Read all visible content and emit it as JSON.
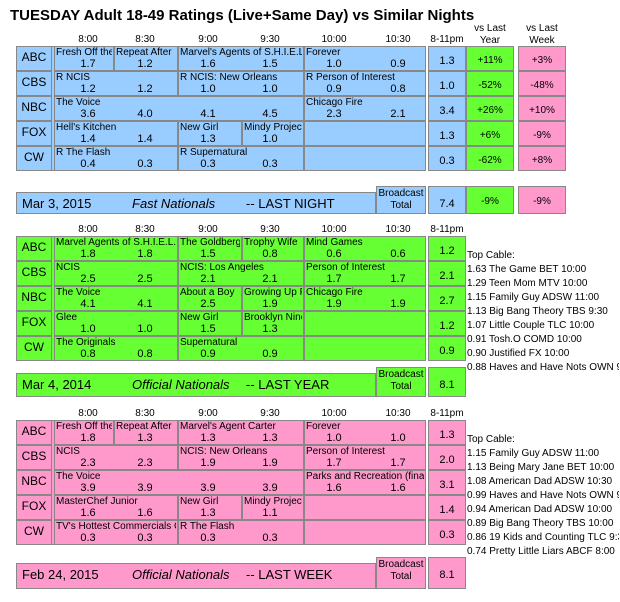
{
  "colors": {
    "blue": "#99ccff",
    "green": "#66ff33",
    "pink": "#ff99cc",
    "vs_green": "#66ff33",
    "vs_pink": "#ff99cc"
  },
  "title": {
    "day": "TUESDAY",
    "rest": " Adult 18-49 Ratings (Live+Same Day) vs Similar Nights"
  },
  "vs_headers": {
    "last_year": "vs Last\nYear",
    "last_week": "vs Last\nWeek"
  },
  "time_slots": [
    "8:00",
    "8:30",
    "9:00",
    "9:30",
    "10:00",
    "10:30",
    "8-11pm"
  ],
  "chart_data": [
    {
      "type": "table",
      "name": "Mar 3, 2015 Fast Nationals -- LAST NIGHT",
      "footer": {
        "date": "Mar 3, 2015",
        "label": "Fast Nationals",
        "suffix": "-- LAST NIGHT",
        "broadcast": "Broadcast\nTotal",
        "total": "7.4",
        "vs_year": "-9%",
        "vs_week": "-9%"
      },
      "rows": [
        {
          "network": "ABC",
          "shows": [
            "Fresh Off the",
            "Repeat After",
            "Marvel's Agents of S.H.I.E.L",
            "Forever"
          ],
          "ratings": [
            "1.7",
            "1.2",
            "1.6",
            "1.5",
            "1.0",
            "0.9"
          ],
          "total": "1.3",
          "vs_year": "+11%",
          "vs_week": "+3%"
        },
        {
          "network": "CBS",
          "shows": [
            "R NCIS",
            "R NCIS: New Orleans",
            "R Person of Interest"
          ],
          "ratings": [
            "1.2",
            "1.2",
            "1.0",
            "1.0",
            "0.9",
            "0.8"
          ],
          "total": "1.0",
          "vs_year": "-52%",
          "vs_week": "-48%"
        },
        {
          "network": "NBC",
          "shows": [
            "The Voice",
            "Chicago Fire"
          ],
          "ratings": [
            "3.6",
            "4.0",
            "4.1",
            "4.5",
            "2.3",
            "2.1"
          ],
          "total": "3.4",
          "vs_year": "+26%",
          "vs_week": "+10%"
        },
        {
          "network": "FOX",
          "shows": [
            "Hell's Kitchen",
            "New Girl",
            "Mindy Project"
          ],
          "ratings": [
            "1.4",
            "1.4",
            "1.3",
            "1.0"
          ],
          "total": "1.3",
          "vs_year": "+6%",
          "vs_week": "-9%"
        },
        {
          "network": "CW",
          "shows": [
            "R The Flash",
            "R Supernatural"
          ],
          "ratings": [
            "0.4",
            "0.3",
            "0.3",
            "0.3"
          ],
          "total": "0.3",
          "vs_year": "-62%",
          "vs_week": "+8%"
        }
      ]
    },
    {
      "type": "table",
      "name": "Mar 4, 2014 Official Nationals -- LAST YEAR",
      "footer": {
        "date": "Mar 4, 2014",
        "label": "Official Nationals",
        "suffix": "-- LAST YEAR",
        "broadcast": "Broadcast\nTotal",
        "total": "8.1"
      },
      "rows": [
        {
          "network": "ABC",
          "shows": [
            "Marvel Agents of S.H.I.E.L.D",
            "The Goldberg",
            "Trophy Wife",
            "Mind Games"
          ],
          "ratings": [
            "1.8",
            "1.8",
            "1.5",
            "0.8",
            "0.6",
            "0.6"
          ],
          "total": "1.2"
        },
        {
          "network": "CBS",
          "shows": [
            "NCIS",
            "NCIS: Los Angeles",
            "Person of Interest"
          ],
          "ratings": [
            "2.5",
            "2.5",
            "2.1",
            "2.1",
            "1.7",
            "1.7"
          ],
          "total": "2.1"
        },
        {
          "network": "NBC",
          "shows": [
            "The Voice",
            "About a Boy",
            "Growing Up F",
            "Chicago Fire"
          ],
          "ratings": [
            "4.1",
            "4.1",
            "2.5",
            "1.9",
            "1.9",
            "1.9"
          ],
          "total": "2.7"
        },
        {
          "network": "FOX",
          "shows": [
            "Glee",
            "New Girl",
            "Brooklyn Nine"
          ],
          "ratings": [
            "1.0",
            "1.0",
            "1.5",
            "1.3"
          ],
          "total": "1.2"
        },
        {
          "network": "CW",
          "shows": [
            "The Originals",
            "Supernatural"
          ],
          "ratings": [
            "0.8",
            "0.8",
            "0.9",
            "0.9"
          ],
          "total": "0.9"
        }
      ],
      "top_cable": {
        "heading": "Top Cable:",
        "items": [
          "1.63 The Game BET 10:00",
          "1.29 Teen Mom MTV 10:00",
          "1.15 Family Guy ADSW 11:00",
          "1.13 Big Bang Theory TBS 9:30",
          "1.07 Little Couple TLC 10:00",
          "0.91 Tosh.O COMD 10:00",
          "0.90 Justified FX 10:00",
          "0.88 Haves and Have Nots OWN 9"
        ]
      }
    },
    {
      "type": "table",
      "name": "Feb 24, 2015 Official Nationals -- LAST WEEK",
      "footer": {
        "date": "Feb 24, 2015",
        "label": "Official Nationals",
        "suffix": "-- LAST WEEK",
        "broadcast": "Broadcast\nTotal",
        "total": "8.1"
      },
      "rows": [
        {
          "network": "ABC",
          "shows": [
            "Fresh Off the",
            "Repeat After",
            "Marvel's Agent Carter",
            "Forever"
          ],
          "ratings": [
            "1.8",
            "1.3",
            "1.3",
            "1.3",
            "1.0",
            "1.0"
          ],
          "total": "1.3"
        },
        {
          "network": "CBS",
          "shows": [
            "NCIS",
            "NCIS: New Orleans",
            "Person of Interest"
          ],
          "ratings": [
            "2.3",
            "2.3",
            "1.9",
            "1.9",
            "1.7",
            "1.7"
          ],
          "total": "2.0"
        },
        {
          "network": "NBC",
          "shows": [
            "The Voice",
            "Parks and Recreation (final"
          ],
          "ratings": [
            "3.9",
            "3.9",
            "3.9",
            "3.9",
            "1.6",
            "1.6"
          ],
          "total": "3.1"
        },
        {
          "network": "FOX",
          "shows": [
            "MasterChef Junior",
            "New Girl",
            "Mindy Project"
          ],
          "ratings": [
            "1.6",
            "1.6",
            "1.3",
            "1.1"
          ],
          "total": "1.4"
        },
        {
          "network": "CW",
          "shows": [
            "TV's Hottest Commercials C",
            "R The Flash"
          ],
          "ratings": [
            "0.3",
            "0.3",
            "0.3",
            "0.3"
          ],
          "total": "0.3"
        }
      ],
      "top_cable": {
        "heading": "Top Cable:",
        "items": [
          "1.15 Family Guy ADSW 11:00",
          "1.13 Being Mary Jane BET 10:00",
          "1.08 American Dad ADSW 10:30",
          "0.99 Haves and Have Nots OWN 9",
          "0.94 American Dad ADSW 10:00",
          "0.89 Big Bang Theory TBS 10:00",
          "0.86 19 Kids and Counting TLC 9:3",
          "0.74 Pretty Little Liars ABCF 8:00"
        ]
      }
    }
  ]
}
